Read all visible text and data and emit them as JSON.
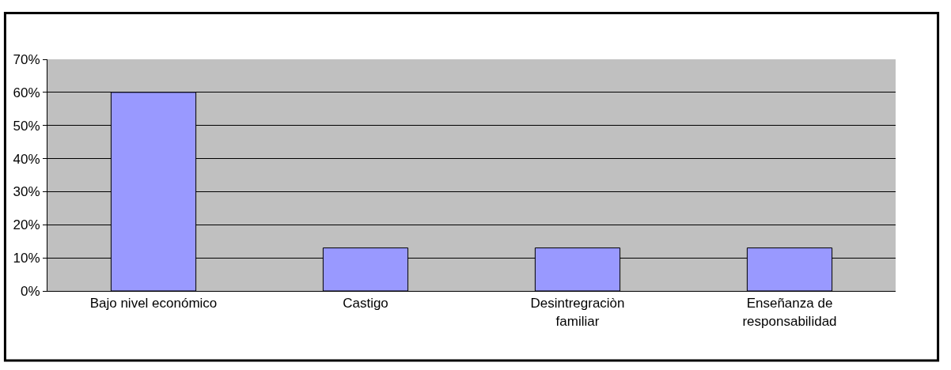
{
  "chart_data": {
    "type": "bar",
    "categories": [
      "Bajo nivel económico",
      "Castigo",
      "Desintregraciòn familiar",
      "Enseñanza de responsabilidad"
    ],
    "values": [
      60,
      13,
      13,
      13
    ],
    "color": "#9999ff",
    "ylim": [
      0,
      70
    ],
    "yticks": [
      {
        "value": 0,
        "label": "0%"
      },
      {
        "value": 10,
        "label": "10%"
      },
      {
        "value": 20,
        "label": "20%"
      },
      {
        "value": 30,
        "label": "30%"
      },
      {
        "value": 40,
        "label": "40%"
      },
      {
        "value": 50,
        "label": "50%"
      },
      {
        "value": 60,
        "label": "60%"
      },
      {
        "value": 70,
        "label": "70%"
      }
    ],
    "grid": "y"
  }
}
